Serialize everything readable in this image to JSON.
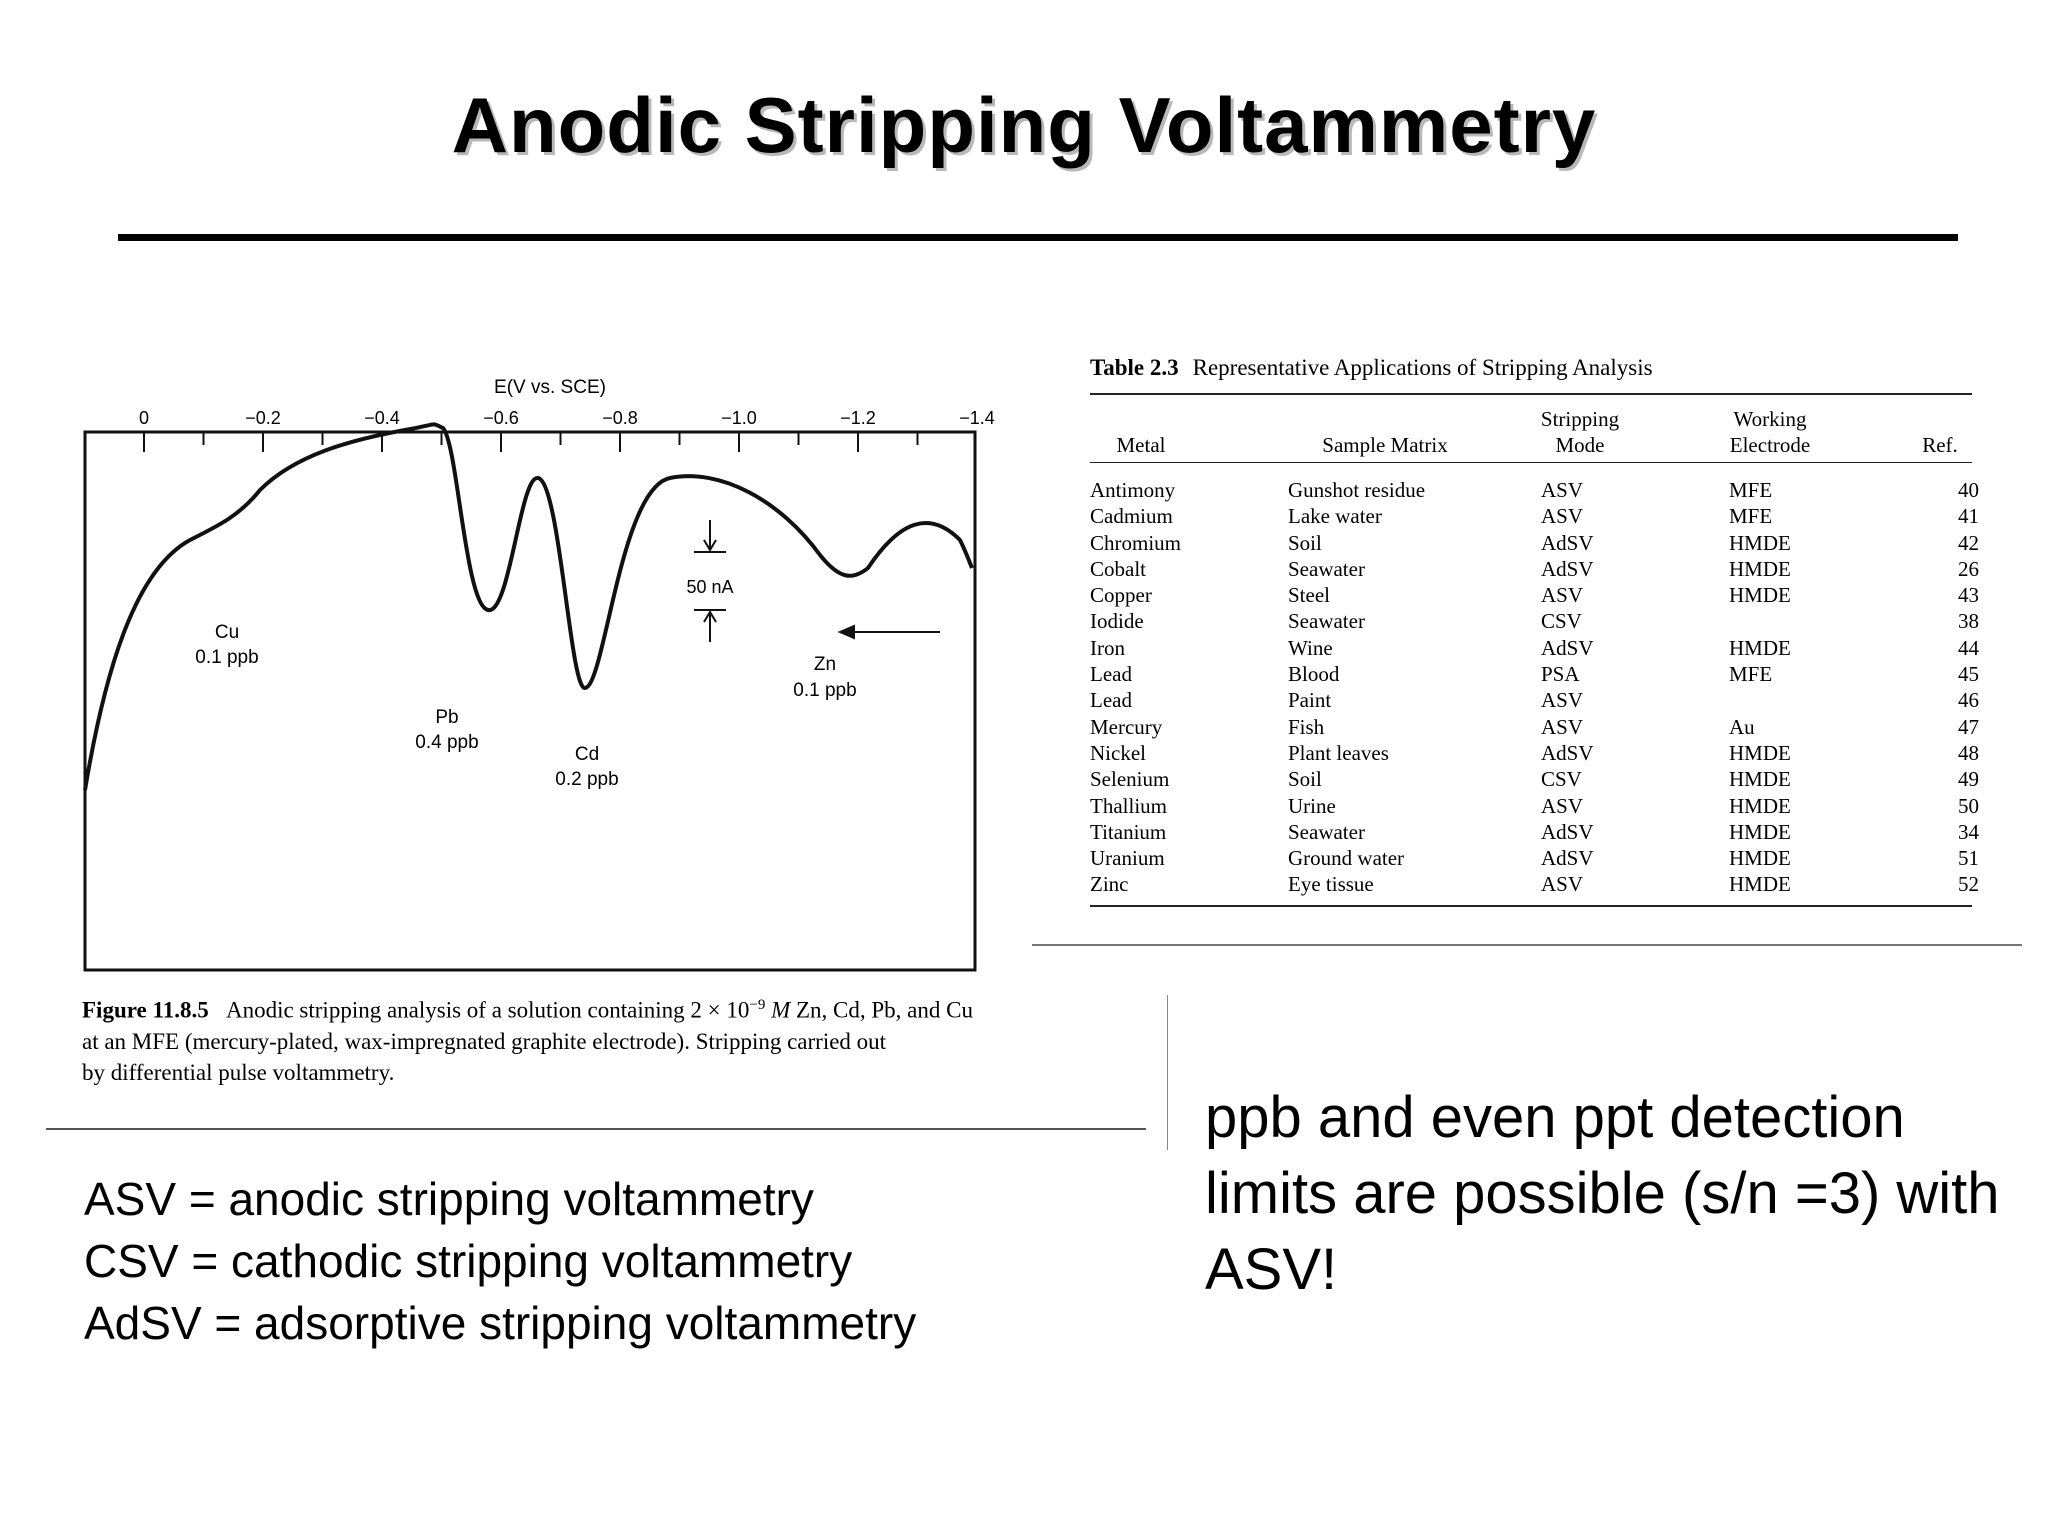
{
  "title": "Anodic Stripping Voltammetry",
  "figure": {
    "axis_label": "E(V vs. SCE)",
    "ticks": [
      "0",
      "−0.2",
      "−0.4",
      "−0.6",
      "−0.8",
      "−1.0",
      "−1.2",
      "−1.4"
    ],
    "scale_label": "50 nA",
    "peaks": [
      {
        "metal": "Cu",
        "conc": "0.1 ppb"
      },
      {
        "metal": "Pb",
        "conc": "0.4 ppb"
      },
      {
        "metal": "Cd",
        "conc": "0.2 ppb"
      },
      {
        "metal": "Zn",
        "conc": "0.1 ppb"
      }
    ],
    "caption_number": "Figure 11.8.5",
    "caption_line1_a": "Anodic stripping analysis of a solution containing 2 × 10",
    "caption_exp": "−9",
    "caption_line1_b": "M",
    "caption_line1_c": " Zn, Cd, Pb, and Cu",
    "caption_line2": "at an MFE (mercury-plated, wax-impregnated graphite electrode). Stripping carried out",
    "caption_line3": "by differential pulse voltammetry."
  },
  "table": {
    "number": "Table 2.3",
    "caption": "Representative Applications of Stripping Analysis",
    "headers": {
      "metal": "Metal",
      "matrix": "Sample Matrix",
      "mode_1": "Stripping",
      "mode_2": "Mode",
      "electrode_1": "Working",
      "electrode_2": "Electrode",
      "ref": "Ref."
    },
    "rows": [
      [
        "Antimony",
        "Gunshot residue",
        "ASV",
        "MFE",
        "40"
      ],
      [
        "Cadmium",
        "Lake water",
        "ASV",
        "MFE",
        "41"
      ],
      [
        "Chromium",
        "Soil",
        "AdSV",
        "HMDE",
        "42"
      ],
      [
        "Cobalt",
        "Seawater",
        "AdSV",
        "HMDE",
        "26"
      ],
      [
        "Copper",
        "Steel",
        "ASV",
        "HMDE",
        "43"
      ],
      [
        "Iodide",
        "Seawater",
        "CSV",
        "",
        "38"
      ],
      [
        "Iron",
        "Wine",
        "AdSV",
        "HMDE",
        "44"
      ],
      [
        "Lead",
        "Blood",
        "PSA",
        "MFE",
        "45"
      ],
      [
        "Lead",
        "Paint",
        "ASV",
        "",
        "46"
      ],
      [
        "Mercury",
        "Fish",
        "ASV",
        "Au",
        "47"
      ],
      [
        "Nickel",
        "Plant leaves",
        "AdSV",
        "HMDE",
        "48"
      ],
      [
        "Selenium",
        "Soil",
        "CSV",
        "HMDE",
        "49"
      ],
      [
        "Thallium",
        "Urine",
        "ASV",
        "HMDE",
        "50"
      ],
      [
        "Titanium",
        "Seawater",
        "AdSV",
        "HMDE",
        "34"
      ],
      [
        "Uranium",
        "Ground water",
        "AdSV",
        "HMDE",
        "51"
      ],
      [
        "Zinc",
        "Eye tissue",
        "ASV",
        "HMDE",
        "52"
      ]
    ]
  },
  "abbreviations": [
    "ASV = anodic stripping voltammetry",
    "CSV = cathodic stripping voltammetry",
    "AdSV = adsorptive stripping voltammetry"
  ],
  "note": "ppb and even ppt detection limits are possible (s/n =3) with ASV!"
}
